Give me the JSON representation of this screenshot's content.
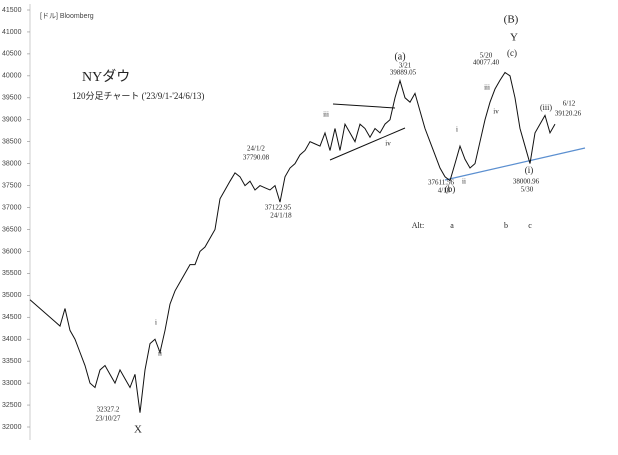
{
  "chart_data": {
    "type": "line",
    "source": "[ドル] Bloomberg",
    "title": "NYダウ",
    "subtitle": "120分足チャート ('23/9/1-'24/6/13)",
    "ylim": [
      32000,
      41500
    ],
    "yticks": [
      32000,
      32500,
      33000,
      33500,
      34000,
      34500,
      35000,
      35500,
      36000,
      36500,
      37000,
      37500,
      38000,
      38500,
      39000,
      39500,
      40000,
      40500,
      41000,
      41500
    ],
    "categories": [
      null,
      null,
      null,
      null,
      null,
      null,
      null,
      null,
      null,
      null,
      null,
      null,
      null,
      null,
      null,
      null,
      null,
      null,
      null,
      null,
      null,
      null,
      null,
      null,
      null,
      null,
      null,
      null,
      null,
      null,
      null,
      null,
      null,
      null,
      null,
      null,
      null,
      null,
      null,
      null,
      null,
      null,
      null,
      null,
      null,
      null,
      null,
      null,
      null,
      null,
      null,
      null,
      null,
      null,
      null,
      null,
      null,
      null,
      null,
      null,
      null,
      null,
      null,
      null,
      null,
      null,
      null,
      null,
      null,
      null,
      null,
      null,
      null,
      null,
      null,
      null,
      null,
      null,
      null,
      null,
      null,
      null,
      null,
      null,
      null,
      null,
      null,
      null,
      null,
      null,
      null,
      null,
      null,
      null,
      null,
      null,
      null,
      null,
      null,
      null,
      null,
      null,
      null,
      null,
      null,
      null
    ],
    "series": [
      {
        "name": "NYダウ",
        "color": "#111111",
        "values": [
          34900,
          34800,
          34700,
          34600,
          34500,
          34400,
          34300,
          34700,
          34200,
          34000,
          33700,
          33400,
          33000,
          32900,
          33300,
          33400,
          33200,
          33000,
          33300,
          33100,
          32900,
          33200,
          32327,
          33300,
          33900,
          34000,
          33700,
          34200,
          34800,
          35100,
          35300,
          35500,
          35700,
          35700,
          36000,
          36100,
          36300,
          36500,
          37200,
          37400,
          37600,
          37790,
          37700,
          37500,
          37600,
          37400,
          37500,
          37450,
          37400,
          37500,
          37123,
          37700,
          37900,
          38000,
          38200,
          38300,
          38500,
          38450,
          38400,
          38700,
          38300,
          38800,
          38300,
          38900,
          38700,
          38500,
          38900,
          38800,
          38600,
          38800,
          38700,
          38900,
          39000,
          39500,
          39889,
          39500,
          39400,
          39600,
          39200,
          38800,
          38500,
          38200,
          37900,
          37700,
          37612,
          38000,
          38400,
          38100,
          37900,
          38000,
          38500,
          39000,
          39400,
          39700,
          39900,
          40077,
          40000,
          39500,
          38800,
          38400,
          38001,
          38700,
          38900,
          39100,
          38700,
          38900
        ]
      }
    ],
    "annotations": [
      "(B)",
      "Y",
      "(c)",
      "(a)",
      "3/21",
      "39889.05",
      "5/20",
      "40077.40",
      "iii",
      "iv",
      "iii",
      "iv",
      "i",
      "ii",
      "i",
      "ii",
      "(iii)",
      "6/12",
      "39120.26",
      "24/1/2",
      "37790.08",
      "37122.95",
      "24/1/18",
      "37611.56",
      "4/18",
      "(b)",
      "38000.96",
      "5/30",
      "(i)",
      "Alt:",
      "a",
      "b",
      "c",
      "32327.2",
      "23/10/27",
      "X"
    ]
  }
}
